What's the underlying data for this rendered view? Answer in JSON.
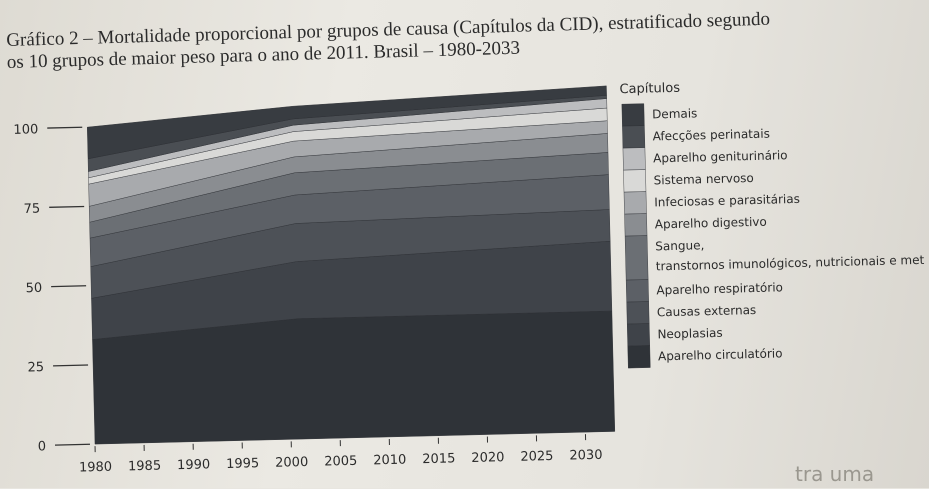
{
  "caption": {
    "line1": "Gráfico 2 – Mortalidade proporcional por grupos de causa (Capítulos da CID), estratificado segundo",
    "line2": "os 10 grupos de maior peso para o ano de 2011. Brasil – 1980-2033"
  },
  "footer_fragment": "tra uma",
  "chart_data": {
    "type": "area",
    "stacked": true,
    "x": [
      1980,
      2001,
      2033
    ],
    "xticks": [
      "1980",
      "1985",
      "1990",
      "1995",
      "2000",
      "2005",
      "2010",
      "2015",
      "2020",
      "2025",
      "2030"
    ],
    "xlim": [
      1980,
      2033
    ],
    "ylim": [
      0,
      105
    ],
    "yticks": [
      "0",
      "25",
      "50",
      "75",
      "100"
    ],
    "legend_title": "Capítulos",
    "legend_position": "right",
    "grid": false,
    "series": [
      {
        "name": "Aparelho circulatório",
        "values": [
          33,
          38,
          38
        ],
        "color": "#2f3338"
      },
      {
        "name": "Neoplasias",
        "values": [
          13,
          18,
          22
        ],
        "color": "#3f4349"
      },
      {
        "name": "Causas externas",
        "values": [
          10,
          12,
          10
        ],
        "color": "#4d5157"
      },
      {
        "name": "Aparelho respiratório",
        "values": [
          9,
          9,
          11
        ],
        "color": "#5c6066"
      },
      {
        "name": "Sangue, transtornos imunológicos, nutricionais e metabólicos",
        "values": [
          5,
          7,
          7
        ],
        "color": "#6b6f74"
      },
      {
        "name": "Aparelho digestivo",
        "values": [
          5,
          5,
          6
        ],
        "color": "#8a8d91"
      },
      {
        "name": "Infeciosas e parasitárias",
        "values": [
          7,
          5,
          4
        ],
        "color": "#a8aaad"
      },
      {
        "name": "Sistema nervoso",
        "values": [
          2,
          3,
          4
        ],
        "color": "#d9d9d7"
      },
      {
        "name": "Aparelho geniturinário",
        "values": [
          2,
          2,
          3
        ],
        "color": "#bcbdbf"
      },
      {
        "name": "Afecções perinatais",
        "values": [
          4,
          2,
          1
        ],
        "color": "#4a4e53"
      },
      {
        "name": "Demais",
        "values": [
          10,
          4,
          3
        ],
        "color": "#383c41"
      }
    ]
  }
}
